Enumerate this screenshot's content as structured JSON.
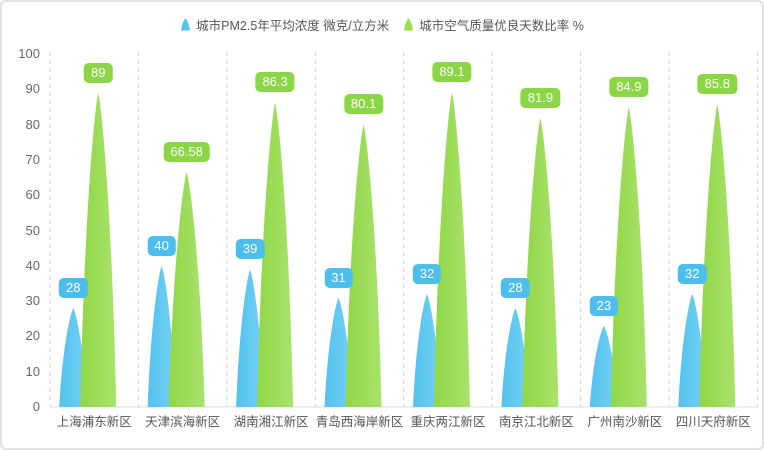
{
  "legend": [
    {
      "label": "城市PM2.5年平均浓度 微克/立方米",
      "color": "#56c4f0"
    },
    {
      "label": "城市空气质量优良天数比率 %",
      "color": "#9cdb52"
    }
  ],
  "chart_data": {
    "type": "bar",
    "variant": "pictorial-petal",
    "categories": [
      "上海浦东新区",
      "天津滨海新区",
      "湖南湘江新区",
      "青岛西海岸新区",
      "重庆两江新区",
      "南京江北新区",
      "广州南沙新区",
      "四川天府新区"
    ],
    "series": [
      {
        "name": "城市PM2.5年平均浓度 微克/立方米",
        "color": "#56c4f0",
        "badge_color": "#4cbeee",
        "gradient": [
          "#53c2ef",
          "#74d1f3"
        ],
        "values": [
          28,
          40,
          39,
          31,
          32,
          28,
          23,
          32
        ]
      },
      {
        "name": "城市空气质量优良天数比率 %",
        "color": "#9cdb52",
        "badge_color": "#8bd645",
        "gradient": [
          "#90d747",
          "#a9e26b"
        ],
        "values": [
          89,
          66.58,
          86.3,
          80.1,
          89.1,
          81.9,
          84.9,
          85.8
        ]
      }
    ],
    "title": "",
    "xlabel": "",
    "ylabel": "",
    "ylim": [
      0,
      100
    ],
    "yticks": [
      0,
      10,
      20,
      30,
      40,
      50,
      60,
      70,
      80,
      90,
      100
    ],
    "grid": "vertical-dashed-separators",
    "separator_color": "#d3d3d3",
    "baseline_color": "#dcdcdc",
    "legend_position": "top-center",
    "data_labels": "badges-above-marks"
  }
}
